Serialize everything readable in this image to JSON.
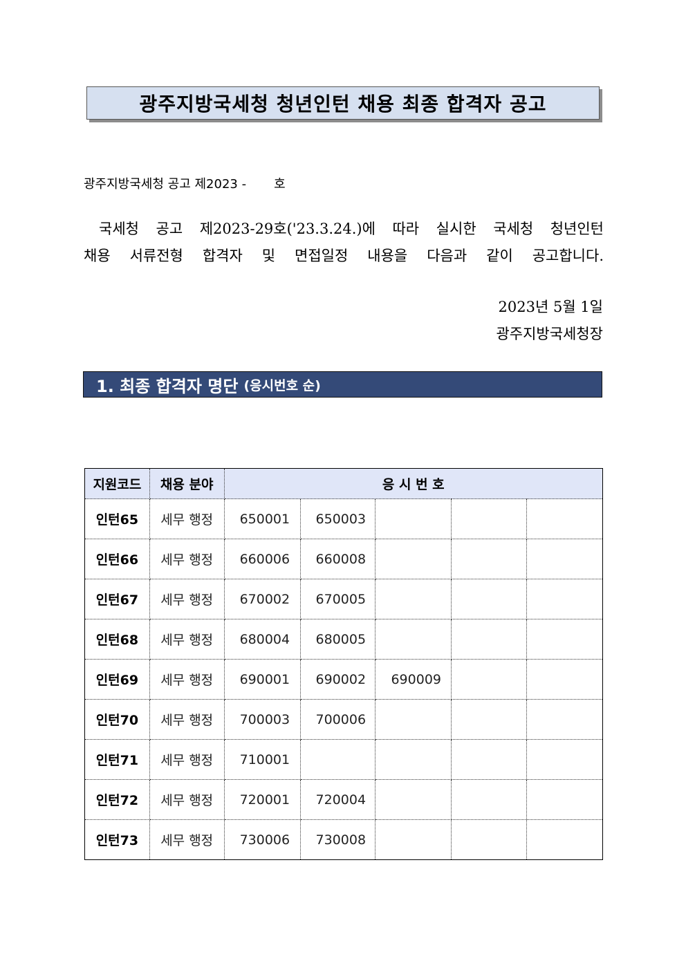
{
  "title": "광주지방국세청 청년인턴 채용 최종 합격자 공고",
  "notice_number": {
    "prefix": "광주지방국세청 공고 제2023 -",
    "suffix": "호"
  },
  "body": {
    "line1": "국세청 공고 제2023-29호('23.3.24.)에 따라 실시한 국세청 청년인턴",
    "line2": "채용 서류전형 합격자 및 면접일정 내용을 다음과 같이 공고합니다."
  },
  "date": "2023년 5월 1일",
  "issuer": "광주지방국세청장",
  "section": {
    "title": "1. 최종 합격자 명단",
    "subtitle": "(응시번호 순)"
  },
  "table": {
    "headers": {
      "code": "지원코드",
      "field": "채용 분야",
      "numbers": "응 시 번 호"
    },
    "rows": [
      {
        "code": "인턴65",
        "field": "세무 행정",
        "numbers": [
          "650001",
          "650003",
          "",
          "",
          ""
        ]
      },
      {
        "code": "인턴66",
        "field": "세무 행정",
        "numbers": [
          "660006",
          "660008",
          "",
          "",
          ""
        ]
      },
      {
        "code": "인턴67",
        "field": "세무 행정",
        "numbers": [
          "670002",
          "670005",
          "",
          "",
          ""
        ]
      },
      {
        "code": "인턴68",
        "field": "세무 행정",
        "numbers": [
          "680004",
          "680005",
          "",
          "",
          ""
        ]
      },
      {
        "code": "인턴69",
        "field": "세무 행정",
        "numbers": [
          "690001",
          "690002",
          "690009",
          "",
          ""
        ]
      },
      {
        "code": "인턴70",
        "field": "세무 행정",
        "numbers": [
          "700003",
          "700006",
          "",
          "",
          ""
        ]
      },
      {
        "code": "인턴71",
        "field": "세무 행정",
        "numbers": [
          "710001",
          "",
          "",
          "",
          ""
        ]
      },
      {
        "code": "인턴72",
        "field": "세무 행정",
        "numbers": [
          "720001",
          "720004",
          "",
          "",
          ""
        ]
      },
      {
        "code": "인턴73",
        "field": "세무 행정",
        "numbers": [
          "730006",
          "730008",
          "",
          "",
          ""
        ]
      }
    ]
  }
}
